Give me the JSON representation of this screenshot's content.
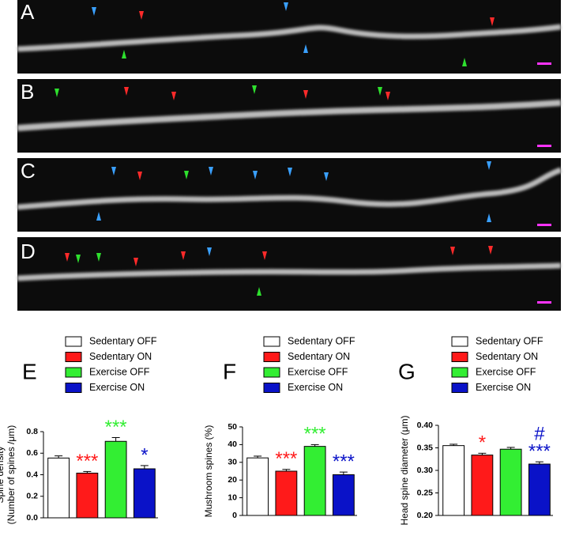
{
  "image_panels": [
    {
      "label": "A"
    },
    {
      "label": "B"
    },
    {
      "label": "C"
    },
    {
      "label": "D"
    }
  ],
  "chart_data": [
    {
      "type": "bar",
      "panel_label": "E",
      "y_label": [
        "Spine density",
        "(Number of spines /μm)"
      ],
      "ylim": [
        0,
        0.8
      ],
      "yticks": [
        {
          "value": 0,
          "label": "0.0"
        },
        0.2,
        0.4,
        0.6,
        0.8
      ],
      "series": [
        {
          "name": "Sedentary OFF",
          "color": "#ffffff",
          "values": [
            0.555
          ],
          "errors": [
            0.02
          ],
          "annotations": []
        },
        {
          "name": "Sedentary ON",
          "color": "#ff1a1a",
          "values": [
            0.415
          ],
          "errors": [
            0.015
          ],
          "annotations": [
            "***"
          ]
        },
        {
          "name": "Exercise OFF",
          "color": "#33ee33",
          "values": [
            0.71
          ],
          "errors": [
            0.035
          ],
          "annotations": [
            "***"
          ]
        },
        {
          "name": "Exercise ON",
          "color": "#0a12c8",
          "values": [
            0.455
          ],
          "errors": [
            0.03
          ],
          "annotations": [
            "*"
          ]
        }
      ]
    },
    {
      "type": "bar",
      "panel_label": "F",
      "y_label": [
        "Mushroom spines (%)"
      ],
      "ylim": [
        0,
        50
      ],
      "yticks": [
        0,
        10,
        20,
        30,
        40,
        50
      ],
      "series": [
        {
          "name": "Sedentary OFF",
          "color": "#ffffff",
          "values": [
            32.5
          ],
          "errors": [
            1
          ],
          "annotations": []
        },
        {
          "name": "Sedentary ON",
          "color": "#ff1a1a",
          "values": [
            25
          ],
          "errors": [
            1
          ],
          "annotations": [
            "***"
          ]
        },
        {
          "name": "Exercise OFF",
          "color": "#33ee33",
          "values": [
            39
          ],
          "errors": [
            1
          ],
          "annotations": [
            "***"
          ]
        },
        {
          "name": "Exercise ON",
          "color": "#0a12c8",
          "values": [
            23
          ],
          "errors": [
            1.5
          ],
          "annotations": [
            "***"
          ]
        }
      ]
    },
    {
      "type": "bar",
      "panel_label": "G",
      "y_label": [
        "Head spine diameter (μm)"
      ],
      "ylim": [
        0.2,
        0.4
      ],
      "yticks": [
        {
          "value": 0.2,
          "label": "0.20"
        },
        {
          "value": 0.25,
          "label": "0.25"
        },
        {
          "value": 0.3,
          "label": "0.30"
        },
        {
          "value": 0.35,
          "label": "0.35"
        },
        {
          "value": 0.4,
          "label": "0.40"
        }
      ],
      "series": [
        {
          "name": "Sedentary OFF",
          "color": "#ffffff",
          "values": [
            0.355
          ],
          "errors": [
            0.003
          ],
          "annotations": []
        },
        {
          "name": "Sedentary ON",
          "color": "#ff1a1a",
          "values": [
            0.334
          ],
          "errors": [
            0.004
          ],
          "annotations": [
            "*"
          ]
        },
        {
          "name": "Exercise OFF",
          "color": "#33ee33",
          "values": [
            0.347
          ],
          "errors": [
            0.004
          ],
          "annotations": []
        },
        {
          "name": "Exercise ON",
          "color": "#0a12c8",
          "values": [
            0.314
          ],
          "errors": [
            0.005
          ],
          "annotations": [
            "***",
            "#"
          ]
        }
      ]
    }
  ]
}
